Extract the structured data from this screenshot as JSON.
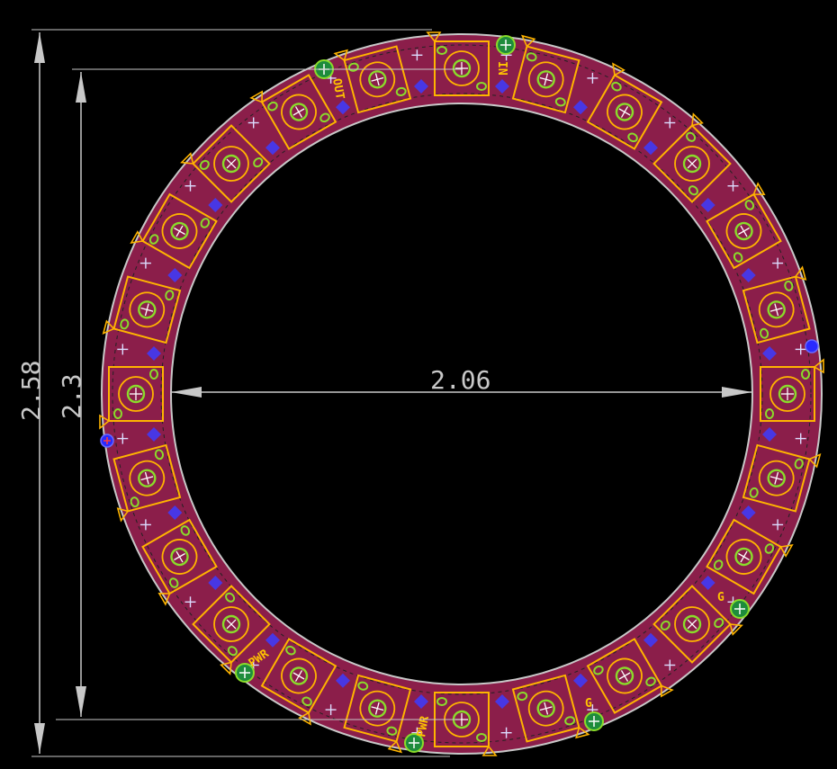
{
  "colors": {
    "background": "#000000",
    "board_fill": "#8b1e4a",
    "board_edge": "#c8c8c8",
    "silkscreen": "#ffb400",
    "pad_ring": "#8adc2a",
    "via_ring": "#1e8c3c",
    "trace": "#3c3cff",
    "dimension": "#c8c8c8"
  },
  "dimensions": {
    "outer_diameter": "2.58",
    "inner_pad_span": "2.3",
    "inner_diameter": "2.06"
  },
  "labels": {
    "in": "IN",
    "out": "OUT",
    "pwr_left": "PWR",
    "pwr_bottom": "PWR",
    "g_right": "G",
    "g_bottom": "G"
  },
  "led_count": 24
}
